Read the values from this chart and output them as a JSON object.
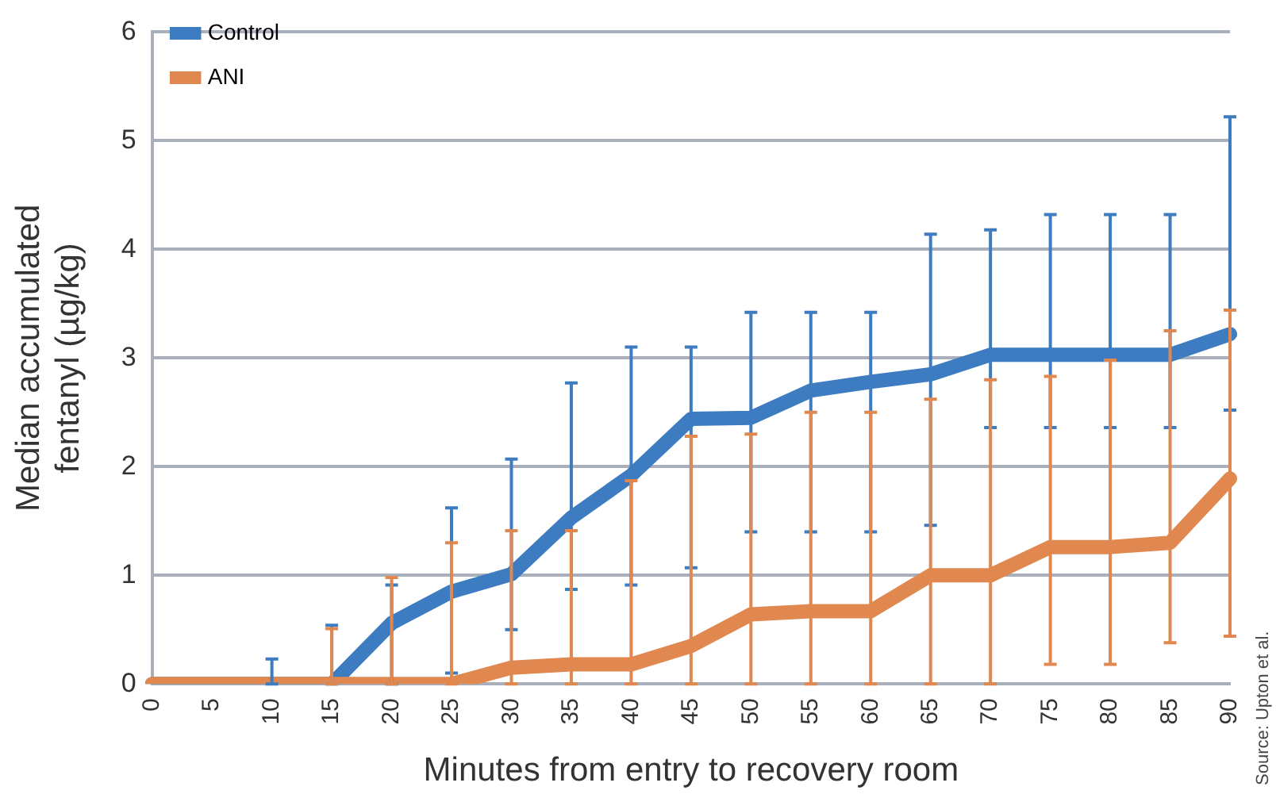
{
  "chart_data": {
    "type": "line",
    "xlabel": "Minutes from entry to recovery room",
    "ylabel": "Median accumulated fentanyl (µg/kg)",
    "categories": [
      "0",
      "5",
      "10",
      "15",
      "20",
      "25",
      "30",
      "35",
      "40",
      "45",
      "50",
      "55",
      "60",
      "65",
      "70",
      "75",
      "80",
      "85",
      "90"
    ],
    "series": [
      {
        "name": "Control",
        "color": "#3d7cc0",
        "values": [
          0,
          0,
          0,
          0,
          0.56,
          0.85,
          1.01,
          1.53,
          1.92,
          2.44,
          2.45,
          2.7,
          2.78,
          2.85,
          3.03,
          3.03,
          3.03,
          3.03,
          3.22
        ],
        "errors": [
          null,
          null,
          [
            0,
            0.23
          ],
          [
            0,
            0.54
          ],
          [
            0,
            0.91
          ],
          [
            0.1,
            1.62
          ],
          [
            0.5,
            2.07
          ],
          [
            0.87,
            2.77
          ],
          [
            0.91,
            3.1
          ],
          [
            1.07,
            3.1
          ],
          [
            1.4,
            3.42
          ],
          [
            1.4,
            3.42
          ],
          [
            1.4,
            3.42
          ],
          [
            1.46,
            4.14
          ],
          [
            2.36,
            4.18
          ],
          [
            2.36,
            4.32
          ],
          [
            2.36,
            4.32
          ],
          [
            2.36,
            4.32
          ],
          [
            2.52,
            5.22
          ]
        ]
      },
      {
        "name": "ANI",
        "color": "#e0884f",
        "values": [
          0,
          0,
          0,
          0,
          0,
          0,
          0.15,
          0.18,
          0.18,
          0.35,
          0.64,
          0.67,
          0.67,
          1,
          1,
          1.26,
          1.26,
          1.3,
          1.89
        ],
        "errors": [
          null,
          null,
          null,
          [
            0,
            0.51
          ],
          [
            0,
            0.98
          ],
          [
            0,
            1.3
          ],
          [
            0,
            1.41
          ],
          [
            0,
            1.41
          ],
          [
            0,
            1.87
          ],
          [
            0,
            2.28
          ],
          [
            0,
            2.3
          ],
          [
            0,
            2.5
          ],
          [
            0,
            2.5
          ],
          [
            0,
            2.62
          ],
          [
            0,
            2.8
          ],
          [
            0.18,
            2.83
          ],
          [
            0.18,
            2.98
          ],
          [
            0.38,
            3.25
          ],
          [
            0.44,
            3.44
          ]
        ]
      }
    ],
    "ylim": [
      0,
      6
    ],
    "yticks": [
      0,
      1,
      2,
      3,
      4,
      5,
      6
    ],
    "grid": "y",
    "legend": "top left",
    "marker": "none",
    "line_style": "solid",
    "annotations": [
      "Source: Upton et al."
    ]
  }
}
